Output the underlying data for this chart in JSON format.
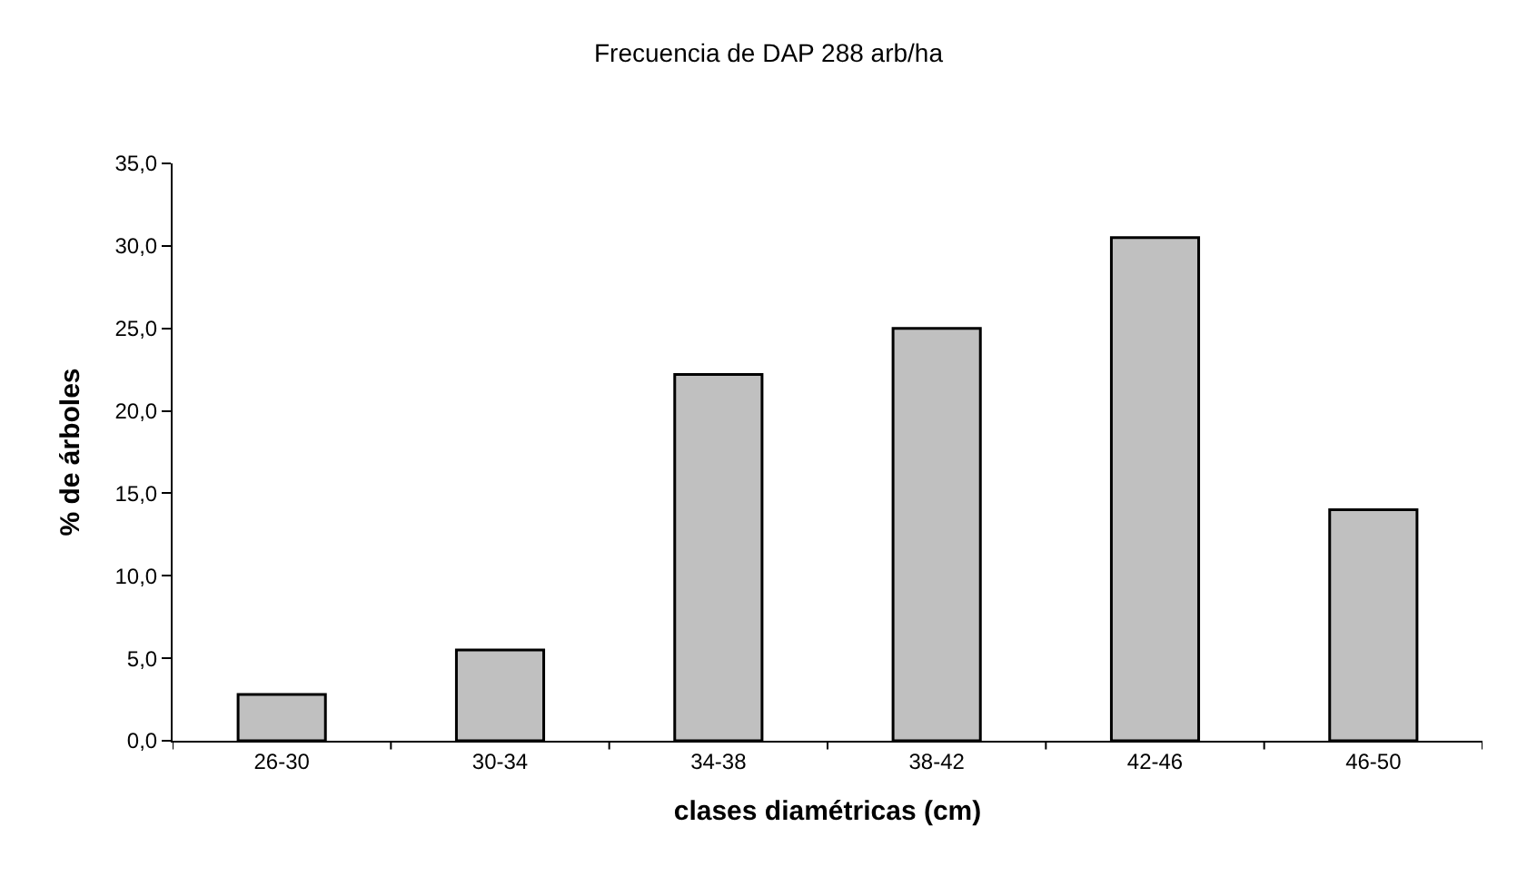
{
  "chart_data": {
    "type": "bar",
    "title": "Frecuencia de DAP 288 arb/ha",
    "xlabel": "clases diamétricas (cm)",
    "ylabel": "% de árboles",
    "categories": [
      "26-30",
      "30-34",
      "34-38",
      "38-42",
      "42-46",
      "46-50"
    ],
    "values": [
      2.8,
      5.5,
      22.2,
      25.0,
      30.5,
      14.0
    ],
    "color": "#c0c0c0",
    "ylim": [
      0,
      35
    ],
    "yticks": [
      {
        "value": 0,
        "label": "0,0"
      },
      {
        "value": 5,
        "label": "5,0"
      },
      {
        "value": 10,
        "label": "10,0"
      },
      {
        "value": 15,
        "label": "15,0"
      },
      {
        "value": 20,
        "label": "20,0"
      },
      {
        "value": 25,
        "label": "25,0"
      },
      {
        "value": 30,
        "label": "30,0"
      },
      {
        "value": 35,
        "label": "35,0"
      }
    ],
    "legend": false
  }
}
